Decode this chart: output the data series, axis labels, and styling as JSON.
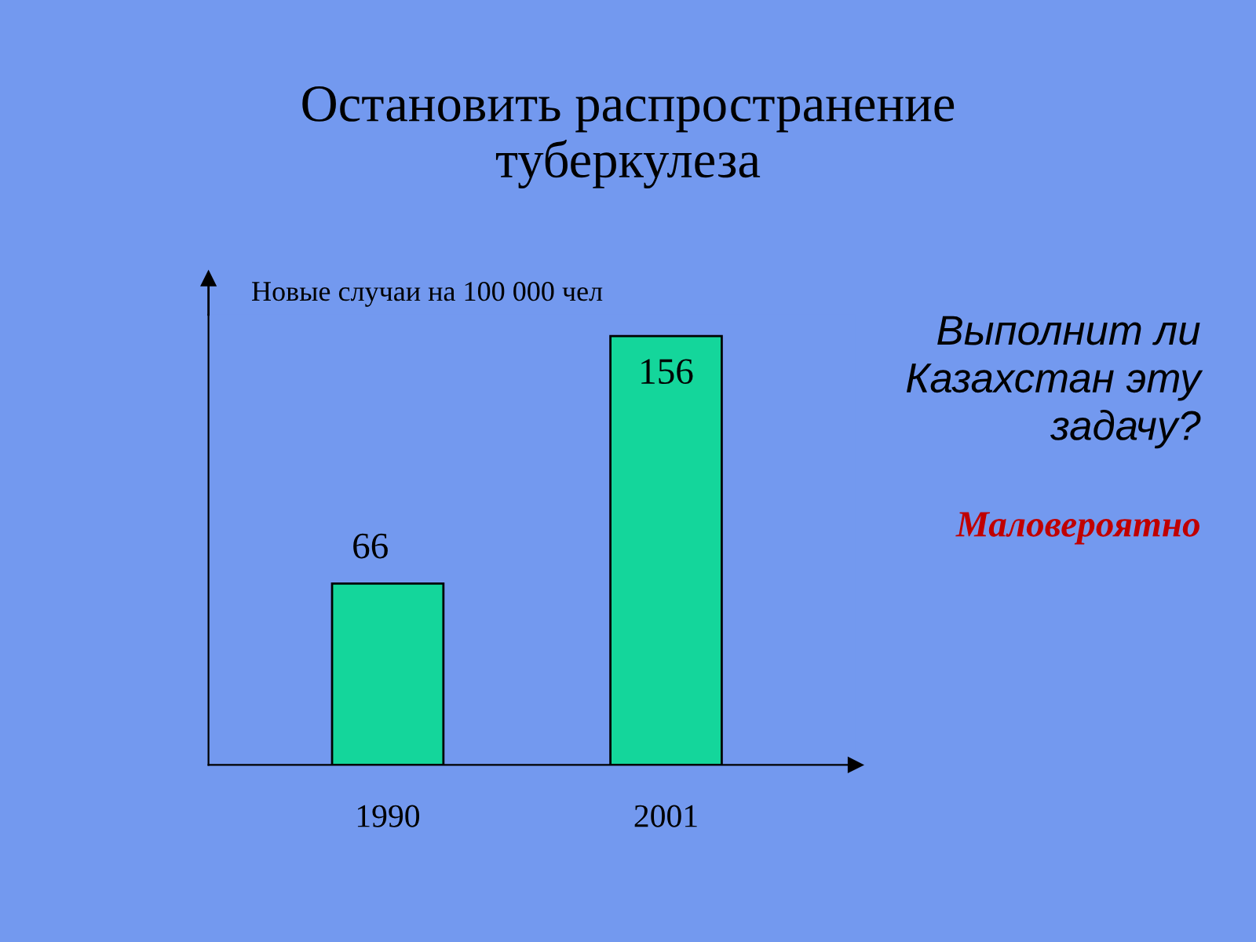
{
  "chart_data": {
    "type": "bar",
    "title": "Остановить распространение\nтуберкулеза",
    "ylabel": "Новые случаи на 100 000 чел",
    "categories": [
      "1990",
      "2001"
    ],
    "values": [
      66,
      156
    ],
    "color": "#14d69b",
    "data_labels": true,
    "grid": false,
    "legend": false,
    "annotations": [
      "Выполнит ли\nКазахстан эту\nзадачу?",
      "Маловероятно"
    ]
  }
}
